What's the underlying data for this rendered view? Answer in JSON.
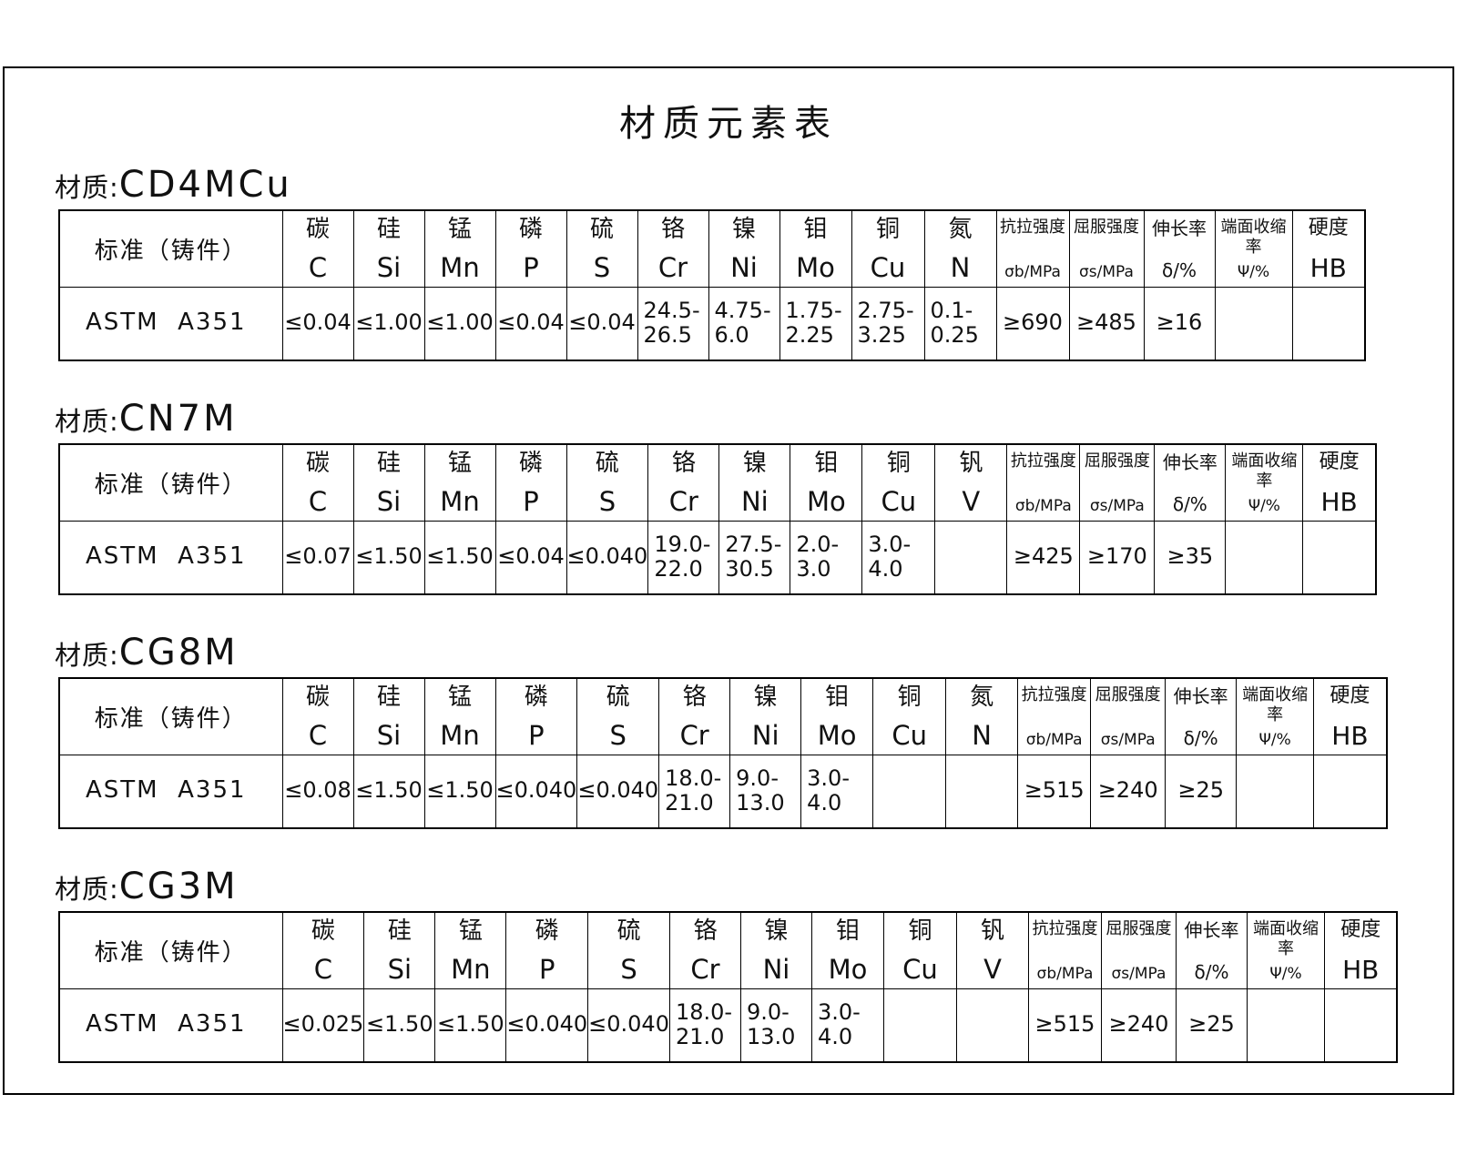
{
  "page": {
    "title": "材质元素表"
  },
  "tables": [
    {
      "material_prefix": "材质:",
      "material_name": "CD4MCu",
      "columns": [
        {
          "type": "standard",
          "label": "标准（铸件）"
        },
        {
          "type": "element",
          "cn": "碳",
          "sym": "C"
        },
        {
          "type": "element",
          "cn": "硅",
          "sym": "Si"
        },
        {
          "type": "element",
          "cn": "锰",
          "sym": "Mn"
        },
        {
          "type": "element",
          "cn": "磷",
          "sym": "P"
        },
        {
          "type": "element",
          "cn": "硫",
          "sym": "S"
        },
        {
          "type": "element",
          "cn": "铬",
          "sym": "Cr"
        },
        {
          "type": "element",
          "cn": "镍",
          "sym": "Ni"
        },
        {
          "type": "element",
          "cn": "钼",
          "sym": "Mo"
        },
        {
          "type": "element",
          "cn": "铜",
          "sym": "Cu"
        },
        {
          "type": "element",
          "cn": "氮",
          "sym": "N"
        },
        {
          "type": "mech",
          "cn": "抗拉强度",
          "sym": "σb/MPa"
        },
        {
          "type": "mech",
          "cn": "屈服强度",
          "sym": "σs/MPa"
        },
        {
          "type": "mech2",
          "cn": "伸长率",
          "sym": "δ/%"
        },
        {
          "type": "mech",
          "cn": "端面收缩率",
          "sym": "Ψ/%"
        },
        {
          "type": "hard",
          "cn": "硬度",
          "sym": "HB"
        }
      ],
      "row": {
        "standard": "ASTM  A351",
        "values": [
          "≤0.04",
          "≤1.00",
          "≤1.00",
          "≤0.04",
          "≤0.04",
          "24.5-\n26.5",
          "4.75-\n6.0",
          "1.75-\n2.25",
          "2.75-\n3.25",
          "0.1-\n0.25",
          "≥690",
          "≥485",
          "≥16",
          "",
          ""
        ]
      }
    },
    {
      "material_prefix": "材质:",
      "material_name": "CN7M",
      "columns": [
        {
          "type": "standard",
          "label": "标准（铸件）"
        },
        {
          "type": "element",
          "cn": "碳",
          "sym": "C"
        },
        {
          "type": "element",
          "cn": "硅",
          "sym": "Si"
        },
        {
          "type": "element",
          "cn": "锰",
          "sym": "Mn"
        },
        {
          "type": "element",
          "cn": "磷",
          "sym": "P"
        },
        {
          "type": "element",
          "cn": "硫",
          "sym": "S"
        },
        {
          "type": "element",
          "cn": "铬",
          "sym": "Cr"
        },
        {
          "type": "element",
          "cn": "镍",
          "sym": "Ni"
        },
        {
          "type": "element",
          "cn": "钼",
          "sym": "Mo"
        },
        {
          "type": "element",
          "cn": "铜",
          "sym": "Cu"
        },
        {
          "type": "element",
          "cn": "钒",
          "sym": "V"
        },
        {
          "type": "mech",
          "cn": "抗拉强度",
          "sym": "σb/MPa"
        },
        {
          "type": "mech",
          "cn": "屈服强度",
          "sym": "σs/MPa"
        },
        {
          "type": "mech2",
          "cn": "伸长率",
          "sym": "δ/%"
        },
        {
          "type": "mech",
          "cn": "端面收缩率",
          "sym": "Ψ/%"
        },
        {
          "type": "hard",
          "cn": "硬度",
          "sym": "HB"
        }
      ],
      "row": {
        "standard": "ASTM  A351",
        "values": [
          "≤0.07",
          "≤1.50",
          "≤1.50",
          "≤0.04",
          "≤0.040",
          "19.0-\n22.0",
          "27.5-\n30.5",
          "2.0-\n3.0",
          "3.0-\n4.0",
          "",
          "≥425",
          "≥170",
          "≥35",
          "",
          ""
        ]
      }
    },
    {
      "material_prefix": "材质:",
      "material_name": "CG8M",
      "columns": [
        {
          "type": "standard",
          "label": "标准（铸件）"
        },
        {
          "type": "element",
          "cn": "碳",
          "sym": "C"
        },
        {
          "type": "element",
          "cn": "硅",
          "sym": "Si"
        },
        {
          "type": "element",
          "cn": "锰",
          "sym": "Mn"
        },
        {
          "type": "element",
          "cn": "磷",
          "sym": "P"
        },
        {
          "type": "element",
          "cn": "硫",
          "sym": "S"
        },
        {
          "type": "element",
          "cn": "铬",
          "sym": "Cr"
        },
        {
          "type": "element",
          "cn": "镍",
          "sym": "Ni"
        },
        {
          "type": "element",
          "cn": "钼",
          "sym": "Mo"
        },
        {
          "type": "element",
          "cn": "铜",
          "sym": "Cu"
        },
        {
          "type": "element",
          "cn": "氮",
          "sym": "N"
        },
        {
          "type": "mech",
          "cn": "抗拉强度",
          "sym": "σb/MPa"
        },
        {
          "type": "mech",
          "cn": "屈服强度",
          "sym": "σs/MPa"
        },
        {
          "type": "mech2",
          "cn": "伸长率",
          "sym": "δ/%"
        },
        {
          "type": "mech",
          "cn": "端面收缩率",
          "sym": "Ψ/%"
        },
        {
          "type": "hard",
          "cn": "硬度",
          "sym": "HB"
        }
      ],
      "row": {
        "standard": "ASTM  A351",
        "values": [
          "≤0.08",
          "≤1.50",
          "≤1.50",
          "≤0.040",
          "≤0.040",
          "18.0-\n21.0",
          "9.0-\n13.0",
          "3.0-\n4.0",
          "",
          "",
          "≥515",
          "≥240",
          "≥25",
          "",
          ""
        ]
      }
    },
    {
      "material_prefix": "材质:",
      "material_name": "CG3M",
      "columns": [
        {
          "type": "standard",
          "label": "标准（铸件）"
        },
        {
          "type": "element",
          "cn": "碳",
          "sym": "C"
        },
        {
          "type": "element",
          "cn": "硅",
          "sym": "Si"
        },
        {
          "type": "element",
          "cn": "锰",
          "sym": "Mn"
        },
        {
          "type": "element",
          "cn": "磷",
          "sym": "P"
        },
        {
          "type": "element",
          "cn": "硫",
          "sym": "S"
        },
        {
          "type": "element",
          "cn": "铬",
          "sym": "Cr"
        },
        {
          "type": "element",
          "cn": "镍",
          "sym": "Ni"
        },
        {
          "type": "element",
          "cn": "钼",
          "sym": "Mo"
        },
        {
          "type": "element",
          "cn": "铜",
          "sym": "Cu"
        },
        {
          "type": "element",
          "cn": "钒",
          "sym": "V"
        },
        {
          "type": "mech",
          "cn": "抗拉强度",
          "sym": "σb/MPa"
        },
        {
          "type": "mech",
          "cn": "屈服强度",
          "sym": "σs/MPa"
        },
        {
          "type": "mech2",
          "cn": "伸长率",
          "sym": "δ/%"
        },
        {
          "type": "mech",
          "cn": "端面收缩率",
          "sym": "Ψ/%"
        },
        {
          "type": "hard",
          "cn": "硬度",
          "sym": "HB"
        }
      ],
      "row": {
        "standard": "ASTM  A351",
        "values": [
          "≤0.025",
          "≤1.50",
          "≤1.50",
          "≤0.040",
          "≤0.040",
          "18.0-\n21.0",
          "9.0-\n13.0",
          "3.0-\n4.0",
          "",
          "",
          "≥515",
          "≥240",
          "≥25",
          "",
          ""
        ]
      }
    }
  ]
}
